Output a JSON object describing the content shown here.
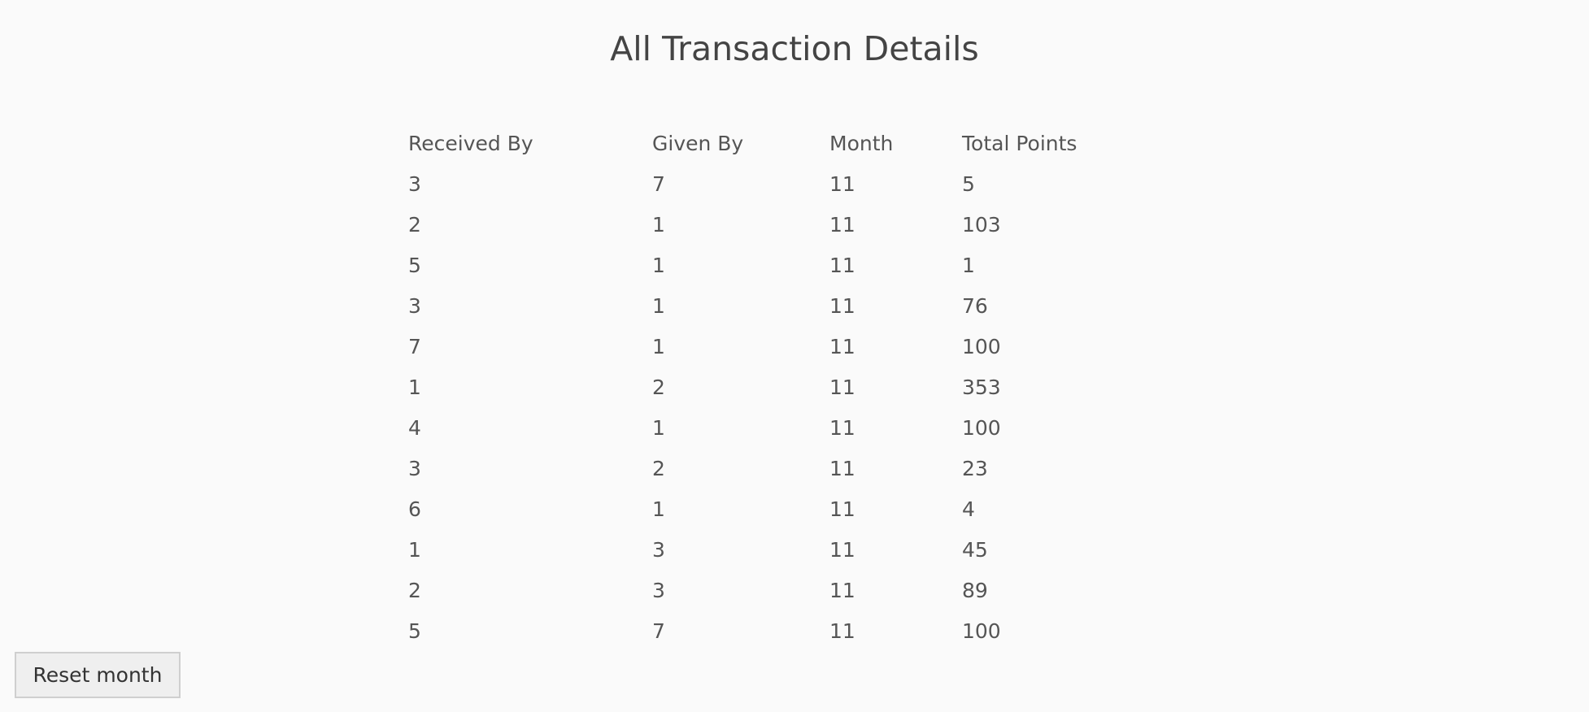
{
  "page": {
    "title": "All Transaction Details"
  },
  "table": {
    "headers": [
      "Received By",
      "Given By",
      "Month",
      "Total Points"
    ],
    "rows": [
      [
        "3",
        "7",
        "11",
        "5"
      ],
      [
        "2",
        "1",
        "11",
        "103"
      ],
      [
        "5",
        "1",
        "11",
        "1"
      ],
      [
        "3",
        "1",
        "11",
        "76"
      ],
      [
        "7",
        "1",
        "11",
        "100"
      ],
      [
        "1",
        "2",
        "11",
        "353"
      ],
      [
        "4",
        "1",
        "11",
        "100"
      ],
      [
        "3",
        "2",
        "11",
        "23"
      ],
      [
        "6",
        "1",
        "11",
        "4"
      ],
      [
        "1",
        "3",
        "11",
        "45"
      ],
      [
        "2",
        "3",
        "11",
        "89"
      ],
      [
        "5",
        "7",
        "11",
        "100"
      ]
    ]
  },
  "controls": {
    "reset_label": "Reset month"
  },
  "colors": {
    "background": "#fafafa",
    "text": "#555555",
    "title": "#444444",
    "button_bg": "#efefef",
    "button_border": "#cfcfcf"
  }
}
